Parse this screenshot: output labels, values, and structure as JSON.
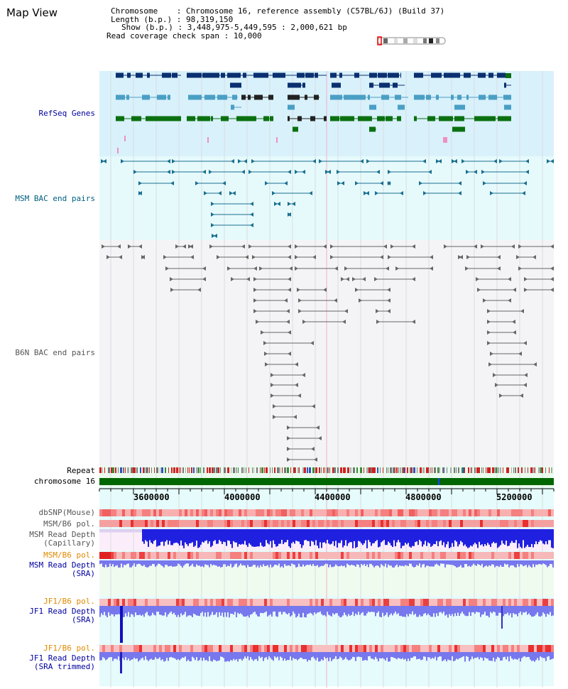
{
  "map": {
    "title": "Map View",
    "info": {
      "chromosome_key": "Chromosome",
      "chromosome_val": "Chromosome 16, reference assembly (C57BL/6J) (Build 37)",
      "length_key": "Length (b.p.)",
      "length_val": "98,319,150",
      "show_key": "Show (b.p.)",
      "show_val": "3,448,975-5,449,595 : 2,000,621 bp",
      "span_key": "Read coverage check span",
      "span_val": "10,000"
    }
  },
  "tracks": {
    "refseq": "RefSeq Genes",
    "msm_bac": "MSM BAC end pairs",
    "b6n_bac": "B6N BAC end pairs",
    "repeat": "Repeat",
    "chromosome": "chromosome 16",
    "dbsnp": "dbSNP(Mouse)",
    "msm_pol1": "MSM/B6 pol.",
    "msm_depth_cap_1": "MSM Read Depth",
    "msm_depth_cap_2": "(Capillary)",
    "msm_pol2": "MSM/B6 pol.",
    "msm_depth_sra_1": "MSM Read Depth",
    "msm_depth_sra_2": "(SRA)",
    "jf1_pol1": "JF1/B6 pol.",
    "jf1_depth_sra_1": "JF1 Read Depth",
    "jf1_depth_sra_2": "(SRA)",
    "jf1_pol2": "JF1/B6 pol.",
    "jf1_depth_trim_1": "JF1 Read Depth",
    "jf1_depth_trim_2": "(SRA trimmed)"
  },
  "axis": {
    "ticks": [
      "3600000",
      "4000000",
      "4400000",
      "4800000",
      "5200000"
    ]
  },
  "colors": {
    "refseq_dark": "#0a3070",
    "refseq_mid": "#4a9fc4",
    "refseq_green": "#0a7010",
    "msm_line": "#1a6f8f",
    "b6n_line": "#666666",
    "chrom_green": "#006600",
    "depth_blue": "#2020e0",
    "depth_light": "#7777ee",
    "pol_red": "#ee3333"
  }
}
